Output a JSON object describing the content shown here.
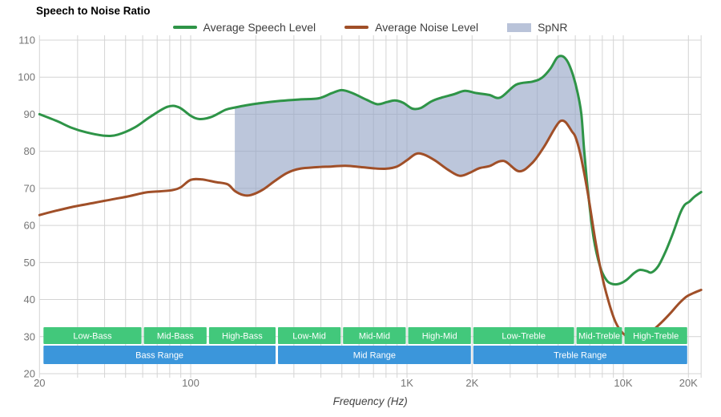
{
  "title": "Speech to Noise Ratio",
  "legend": {
    "items": [
      {
        "label": "Average Speech Level",
        "swatch": "line",
        "color": "#2e9447"
      },
      {
        "label": "Average Noise Level",
        "swatch": "line",
        "color": "#a04f28"
      },
      {
        "label": "SpNR",
        "swatch": "area",
        "color": "#b9c3d9"
      }
    ]
  },
  "chart_data": {
    "type": "line",
    "title": "Speech to Noise Ratio",
    "xlabel": "Frequency (Hz)",
    "ylabel": "",
    "x_scale": "log",
    "xlim_hz": [
      20,
      22900
    ],
    "ylim": [
      20,
      110
    ],
    "grid": true,
    "grid_color": "#d4d4d4",
    "legend_position": "top",
    "y_ticks": [
      110,
      100,
      90,
      80,
      70,
      60,
      50,
      40,
      30,
      20
    ],
    "x_ticks": [
      {
        "label": "20",
        "hz": 20
      },
      {
        "label": "100",
        "hz": 100
      },
      {
        "label": "1K",
        "hz": 1000
      },
      {
        "label": "2K",
        "hz": 2000
      },
      {
        "label": "10K",
        "hz": 10000
      },
      {
        "label": "20K",
        "hz": 20000
      }
    ],
    "minor_gridlines_hz": [
      20,
      30,
      40,
      50,
      60,
      70,
      80,
      90,
      100,
      200,
      300,
      400,
      500,
      600,
      700,
      800,
      900,
      1000,
      2000,
      3000,
      4000,
      5000,
      6000,
      7000,
      8000,
      9000,
      10000,
      20000
    ],
    "series": [
      {
        "name": "Average Speech Level",
        "color": "#2e9447",
        "points": [
          [
            20,
            90.0
          ],
          [
            24,
            88.2
          ],
          [
            28,
            86.4
          ],
          [
            33,
            85.1
          ],
          [
            40,
            84.2
          ],
          [
            46,
            84.5
          ],
          [
            55,
            86.4
          ],
          [
            65,
            89.3
          ],
          [
            78,
            92.0
          ],
          [
            88,
            91.9
          ],
          [
            100,
            89.6
          ],
          [
            110,
            88.7
          ],
          [
            125,
            89.3
          ],
          [
            145,
            91.2
          ],
          [
            160,
            91.8
          ],
          [
            180,
            92.4
          ],
          [
            210,
            93.0
          ],
          [
            260,
            93.6
          ],
          [
            320,
            94.0
          ],
          [
            390,
            94.3
          ],
          [
            450,
            95.7
          ],
          [
            500,
            96.5
          ],
          [
            560,
            95.7
          ],
          [
            650,
            93.9
          ],
          [
            730,
            92.7
          ],
          [
            810,
            93.3
          ],
          [
            880,
            93.7
          ],
          [
            960,
            93.1
          ],
          [
            1060,
            91.5
          ],
          [
            1160,
            91.7
          ],
          [
            1300,
            93.5
          ],
          [
            1450,
            94.5
          ],
          [
            1650,
            95.4
          ],
          [
            1850,
            96.3
          ],
          [
            2100,
            95.7
          ],
          [
            2400,
            95.2
          ],
          [
            2700,
            94.5
          ],
          [
            3200,
            98.0
          ],
          [
            3800,
            98.8
          ],
          [
            4200,
            99.8
          ],
          [
            4600,
            102.3
          ],
          [
            4950,
            105.3
          ],
          [
            5250,
            105.6
          ],
          [
            5550,
            104.0
          ],
          [
            5850,
            100.6
          ],
          [
            6150,
            95.8
          ],
          [
            6400,
            90.0
          ],
          [
            6600,
            80.0
          ],
          [
            6900,
            68.0
          ],
          [
            7300,
            56.5
          ],
          [
            7800,
            49.0
          ],
          [
            8300,
            45.5
          ],
          [
            8800,
            44.3
          ],
          [
            9500,
            44.2
          ],
          [
            10300,
            45.2
          ],
          [
            11200,
            47.1
          ],
          [
            11900,
            48.0
          ],
          [
            12800,
            47.7
          ],
          [
            13500,
            47.3
          ],
          [
            14500,
            49.0
          ],
          [
            15700,
            53.0
          ],
          [
            17000,
            58.0
          ],
          [
            18300,
            63.2
          ],
          [
            19200,
            65.5
          ],
          [
            20200,
            66.4
          ],
          [
            21300,
            67.7
          ],
          [
            22900,
            69.0
          ]
        ]
      },
      {
        "name": "Average Noise Level",
        "color": "#a04f28",
        "points": [
          [
            20,
            62.8
          ],
          [
            24,
            64.0
          ],
          [
            29,
            65.1
          ],
          [
            35,
            66.0
          ],
          [
            43,
            67.0
          ],
          [
            52,
            67.9
          ],
          [
            62,
            68.9
          ],
          [
            72,
            69.2
          ],
          [
            82,
            69.5
          ],
          [
            90,
            70.3
          ],
          [
            100,
            72.3
          ],
          [
            113,
            72.4
          ],
          [
            130,
            71.7
          ],
          [
            148,
            71.1
          ],
          [
            160,
            69.3
          ],
          [
            175,
            68.2
          ],
          [
            190,
            68.2
          ],
          [
            215,
            69.6
          ],
          [
            245,
            72.0
          ],
          [
            280,
            74.2
          ],
          [
            320,
            75.3
          ],
          [
            380,
            75.7
          ],
          [
            450,
            75.9
          ],
          [
            520,
            76.1
          ],
          [
            600,
            75.8
          ],
          [
            700,
            75.4
          ],
          [
            800,
            75.3
          ],
          [
            900,
            75.9
          ],
          [
            1000,
            77.6
          ],
          [
            1100,
            79.3
          ],
          [
            1200,
            79.1
          ],
          [
            1350,
            77.5
          ],
          [
            1550,
            75.0
          ],
          [
            1750,
            73.4
          ],
          [
            1950,
            74.2
          ],
          [
            2150,
            75.4
          ],
          [
            2400,
            76.0
          ],
          [
            2800,
            77.4
          ],
          [
            3300,
            74.6
          ],
          [
            3800,
            76.9
          ],
          [
            4300,
            81.2
          ],
          [
            4800,
            86.0
          ],
          [
            5100,
            88.1
          ],
          [
            5400,
            87.9
          ],
          [
            5800,
            85.3
          ],
          [
            6000,
            84.0
          ],
          [
            6300,
            79.8
          ],
          [
            6600,
            74.0
          ],
          [
            7000,
            65.5
          ],
          [
            7400,
            56.5
          ],
          [
            7900,
            47.5
          ],
          [
            8500,
            40.0
          ],
          [
            9200,
            34.0
          ],
          [
            10000,
            30.8
          ],
          [
            11000,
            29.6
          ],
          [
            12200,
            29.8
          ],
          [
            13500,
            31.4
          ],
          [
            15000,
            33.8
          ],
          [
            16500,
            36.3
          ],
          [
            18000,
            38.8
          ],
          [
            19500,
            40.7
          ],
          [
            21000,
            41.7
          ],
          [
            22900,
            42.6
          ]
        ]
      }
    ],
    "spnr_area": {
      "name": "SpNR",
      "from_hz": 160,
      "to_hz": 6600,
      "color": "rgba(147,163,197,0.62)"
    },
    "speech_bands": {
      "color": "#42c87b",
      "text_color": "#ffffff",
      "items": [
        {
          "label": "Low-Bass",
          "from_hz": 20,
          "to_hz": 60
        },
        {
          "label": "Mid-Bass",
          "from_hz": 60,
          "to_hz": 120
        },
        {
          "label": "High-Bass",
          "from_hz": 120,
          "to_hz": 250
        },
        {
          "label": "Low-Mid",
          "from_hz": 250,
          "to_hz": 500
        },
        {
          "label": "Mid-Mid",
          "from_hz": 500,
          "to_hz": 1000
        },
        {
          "label": "High-Mid",
          "from_hz": 1000,
          "to_hz": 2000
        },
        {
          "label": "Low-Treble",
          "from_hz": 2000,
          "to_hz": 6000
        },
        {
          "label": "Mid-Treble",
          "from_hz": 6000,
          "to_hz": 10000
        },
        {
          "label": "High-Treble",
          "from_hz": 10000,
          "to_hz": 20000
        }
      ]
    },
    "range_bands": {
      "color": "#3b96db",
      "text_color": "#ffffff",
      "items": [
        {
          "label": "Bass Range",
          "from_hz": 20,
          "to_hz": 250
        },
        {
          "label": "Mid Range",
          "from_hz": 250,
          "to_hz": 2000
        },
        {
          "label": "Treble Range",
          "from_hz": 2000,
          "to_hz": 20000
        }
      ]
    }
  }
}
